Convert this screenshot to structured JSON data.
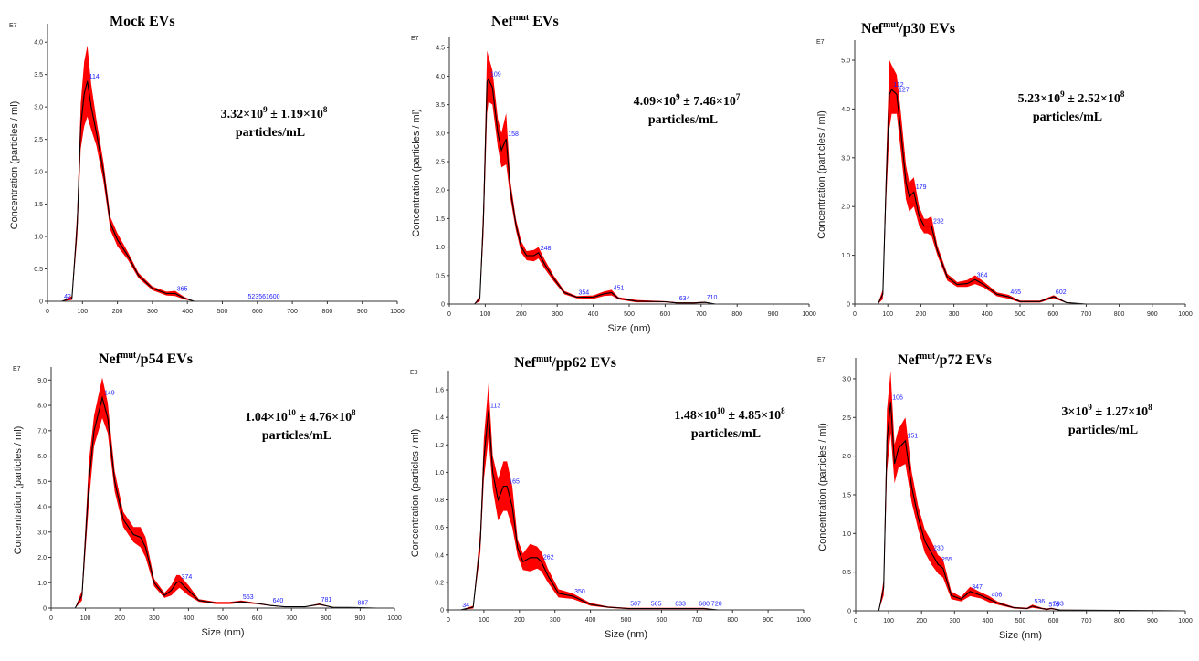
{
  "chart_data": [
    {
      "type": "line",
      "title": "Mock EVs",
      "title_main": "Mock EVs",
      "title_sup": "",
      "title_rest": "",
      "conc_line1": {
        "m": "3.32×10",
        "me": "9",
        "mid": " ± 1.19×10",
        "se": "8"
      },
      "conc_line2": "particles/mL",
      "ylabel": "Concentration (particles / ml)",
      "xlabel": "",
      "exponent": "E7",
      "xlim": [
        0,
        1000
      ],
      "ylim": [
        0,
        4.2
      ],
      "yticks": [
        "0",
        "0.5",
        "1.0",
        "1.5",
        "2.0",
        "2.5",
        "3.0",
        "3.5",
        "4.0"
      ],
      "xticks": [
        "0",
        "100",
        "200",
        "300",
        "400",
        "500",
        "600",
        "700",
        "800",
        "900",
        "1000"
      ],
      "x": [
        0,
        40,
        70,
        85,
        95,
        105,
        114,
        125,
        140,
        160,
        180,
        200,
        230,
        260,
        300,
        340,
        365,
        390,
        420,
        500,
        600,
        700,
        800,
        1000
      ],
      "y": [
        0,
        0,
        0.05,
        1.2,
        2.7,
        3.2,
        3.4,
        3.0,
        2.6,
        2.0,
        1.2,
        0.95,
        0.7,
        0.4,
        0.2,
        0.12,
        0.12,
        0.05,
        0,
        0,
        0,
        0,
        0,
        0
      ],
      "err": [
        0,
        0,
        0.03,
        0.2,
        0.35,
        0.5,
        0.55,
        0.35,
        0.2,
        0.15,
        0.1,
        0.1,
        0.06,
        0.04,
        0.03,
        0.03,
        0.04,
        0.02,
        0,
        0,
        0,
        0,
        0,
        0
      ],
      "peak_labels": [
        {
          "x": 42,
          "y": 0,
          "t": "42"
        },
        {
          "x": 114,
          "y": 3.4,
          "t": "114"
        },
        {
          "x": 365,
          "y": 0.12,
          "t": "365"
        },
        {
          "x": 568,
          "y": 0,
          "t": "523561600"
        }
      ]
    },
    {
      "type": "line",
      "title": "Nefmut EVs",
      "title_main": "Nef",
      "title_sup": "mut",
      "title_rest": " EVs",
      "conc_line1": {
        "m": "4.09×10",
        "me": "9",
        "mid": " ± 7.46×10",
        "se": "7"
      },
      "conc_line2": "particles/mL",
      "ylabel": "Concentration (particles / ml)",
      "xlabel": "Size (nm)",
      "exponent": "E7",
      "xlim": [
        0,
        1000
      ],
      "ylim": [
        0,
        4.6
      ],
      "yticks": [
        "0",
        "0.5",
        "1.0",
        "1.5",
        "2.0",
        "2.5",
        "3.0",
        "3.5",
        "4.0",
        "4.5"
      ],
      "xticks": [
        "0",
        "100",
        "200",
        "300",
        "400",
        "500",
        "600",
        "700",
        "800",
        "900",
        "1000"
      ],
      "x": [
        0,
        70,
        85,
        95,
        105,
        109,
        120,
        135,
        145,
        158,
        170,
        185,
        200,
        215,
        235,
        248,
        265,
        290,
        320,
        354,
        400,
        430,
        451,
        470,
        520,
        600,
        634,
        680,
        710,
        740,
        800,
        1000
      ],
      "y": [
        0,
        0,
        0.1,
        1.5,
        3.9,
        3.95,
        3.8,
        3.0,
        2.7,
        2.9,
        2.0,
        1.4,
        1.0,
        0.85,
        0.85,
        0.9,
        0.7,
        0.45,
        0.2,
        0.12,
        0.12,
        0.18,
        0.2,
        0.1,
        0.05,
        0.04,
        0.02,
        0.02,
        0.03,
        0,
        0,
        0
      ],
      "err": [
        0,
        0,
        0.05,
        0.3,
        0.55,
        0.4,
        0.3,
        0.25,
        0.3,
        0.45,
        0.15,
        0.1,
        0.1,
        0.08,
        0.1,
        0.1,
        0.08,
        0.05,
        0.03,
        0.02,
        0.03,
        0.04,
        0.05,
        0.02,
        0.02,
        0.01,
        0.01,
        0.01,
        0.01,
        0,
        0,
        0
      ],
      "peak_labels": [
        {
          "x": 109,
          "y": 3.95,
          "t": "109"
        },
        {
          "x": 158,
          "y": 2.9,
          "t": "158"
        },
        {
          "x": 248,
          "y": 0.9,
          "t": "248"
        },
        {
          "x": 354,
          "y": 0.12,
          "t": "354"
        },
        {
          "x": 451,
          "y": 0.2,
          "t": "451"
        },
        {
          "x": 634,
          "y": 0.02,
          "t": "634"
        },
        {
          "x": 710,
          "y": 0.03,
          "t": "710"
        }
      ]
    },
    {
      "type": "line",
      "title": "Nefmut/p30 EVs",
      "title_main": "Nef",
      "title_sup": "mut",
      "title_rest": "/p30 EVs",
      "conc_line1": {
        "m": "5.23×10",
        "me": "9",
        "mid": " ± 2.52×10",
        "se": "8"
      },
      "conc_line2": "particles/mL",
      "ylabel": "Concentration (particles / ml)",
      "xlabel": "",
      "exponent": "E7",
      "xlim": [
        0,
        1000
      ],
      "ylim": [
        0,
        5.3
      ],
      "yticks": [
        "0",
        "1.0",
        "2.0",
        "3.0",
        "4.0",
        "5.0"
      ],
      "xticks": [
        "0",
        "100",
        "200",
        "300",
        "400",
        "500",
        "600",
        "700",
        "800",
        "900",
        "1000"
      ],
      "x": [
        0,
        70,
        85,
        95,
        105,
        112,
        127,
        140,
        155,
        165,
        179,
        195,
        210,
        220,
        232,
        250,
        280,
        310,
        340,
        364,
        390,
        430,
        465,
        500,
        560,
        602,
        640,
        700,
        1000
      ],
      "y": [
        0,
        0,
        0.2,
        2.5,
        4.3,
        4.4,
        4.3,
        3.5,
        2.5,
        2.2,
        2.3,
        1.8,
        1.6,
        1.6,
        1.6,
        1.1,
        0.55,
        0.4,
        0.42,
        0.5,
        0.4,
        0.2,
        0.15,
        0.05,
        0.05,
        0.15,
        0.03,
        0,
        0
      ],
      "err": [
        0,
        0,
        0.1,
        0.4,
        0.7,
        0.5,
        0.4,
        0.4,
        0.35,
        0.3,
        0.3,
        0.2,
        0.15,
        0.15,
        0.2,
        0.1,
        0.07,
        0.05,
        0.07,
        0.09,
        0.06,
        0.04,
        0.04,
        0.02,
        0.02,
        0.03,
        0.01,
        0,
        0
      ],
      "peak_labels": [
        {
          "x": 112,
          "y": 4.4,
          "t": "112"
        },
        {
          "x": 127,
          "y": 4.3,
          "t": "127"
        },
        {
          "x": 179,
          "y": 2.3,
          "t": "179"
        },
        {
          "x": 232,
          "y": 1.6,
          "t": "232"
        },
        {
          "x": 364,
          "y": 0.5,
          "t": "364"
        },
        {
          "x": 465,
          "y": 0.15,
          "t": "465"
        },
        {
          "x": 602,
          "y": 0.15,
          "t": "602"
        }
      ]
    },
    {
      "type": "line",
      "title": "Nefmut/p54 EVs",
      "title_main": "Nef",
      "title_sup": "mut",
      "title_rest": "/p54 EVs",
      "conc_line1": {
        "m": "1.04×10",
        "me": "10",
        "mid": " ± 4.76×10",
        "se": "8"
      },
      "conc_line2": "particles/mL",
      "ylabel": "Concentration (particles / ml)",
      "xlabel": "Size (nm)",
      "exponent": "E7",
      "xlim": [
        0,
        1000
      ],
      "ylim": [
        0,
        9.3
      ],
      "yticks": [
        "0",
        "1.0",
        "2.0",
        "3.0",
        "4.0",
        "5.0",
        "6.0",
        "7.0",
        "8.0",
        "9.0"
      ],
      "xticks": [
        "0",
        "100",
        "200",
        "300",
        "400",
        "500",
        "600",
        "700",
        "800",
        "900",
        "1000"
      ],
      "x": [
        0,
        70,
        90,
        110,
        125,
        149,
        165,
        185,
        210,
        240,
        260,
        275,
        300,
        330,
        350,
        365,
        374,
        400,
        430,
        480,
        520,
        553,
        600,
        640,
        680,
        740,
        781,
        820,
        887,
        950,
        1000
      ],
      "y": [
        0,
        0,
        0.5,
        5.0,
        7.0,
        8.3,
        7.5,
        5.0,
        3.5,
        2.9,
        2.8,
        2.4,
        1.0,
        0.5,
        0.7,
        1.0,
        1.05,
        0.7,
        0.3,
        0.2,
        0.2,
        0.25,
        0.18,
        0.1,
        0.05,
        0.05,
        0.15,
        0.03,
        0.02,
        0,
        0
      ],
      "err": [
        0,
        0,
        0.2,
        0.8,
        0.6,
        0.8,
        0.6,
        0.4,
        0.3,
        0.3,
        0.4,
        0.4,
        0.15,
        0.1,
        0.2,
        0.3,
        0.25,
        0.2,
        0.05,
        0.04,
        0.04,
        0.05,
        0.03,
        0.02,
        0.01,
        0.01,
        0.03,
        0.01,
        0.01,
        0,
        0
      ],
      "peak_labels": [
        {
          "x": 149,
          "y": 8.3,
          "t": "149"
        },
        {
          "x": 374,
          "y": 1.05,
          "t": "374"
        },
        {
          "x": 553,
          "y": 0.25,
          "t": "553"
        },
        {
          "x": 640,
          "y": 0.1,
          "t": "640"
        },
        {
          "x": 781,
          "y": 0.15,
          "t": "781"
        },
        {
          "x": 887,
          "y": 0.02,
          "t": "887"
        }
      ]
    },
    {
      "type": "line",
      "title": "Nefmut/pp62 EVs",
      "title_main": "Nef",
      "title_sup": "mut",
      "title_rest": "/pp62 EVs",
      "conc_line1": {
        "m": "1.48×10",
        "me": "10",
        "mid": " ± 4.85×10",
        "se": "8"
      },
      "conc_line2": "particles/mL",
      "ylabel": "Concentration (particles / ml)",
      "xlabel": "Size (nm)",
      "exponent": "E8",
      "xlim": [
        0,
        1000
      ],
      "ylim": [
        0,
        1.7
      ],
      "yticks": [
        "0",
        "0.2",
        "0.4",
        "0.6",
        "0.8",
        "1.0",
        "1.2",
        "1.4",
        "1.6"
      ],
      "xticks": [
        "0",
        "100",
        "200",
        "300",
        "400",
        "500",
        "600",
        "700",
        "800",
        "900",
        "1000"
      ],
      "x": [
        0,
        34,
        70,
        90,
        100,
        113,
        125,
        140,
        155,
        165,
        180,
        195,
        210,
        230,
        250,
        262,
        280,
        310,
        350,
        400,
        450,
        507,
        565,
        600,
        633,
        680,
        720,
        760,
        1000
      ],
      "y": [
        0,
        0,
        0.02,
        0.5,
        1.1,
        1.45,
        1.0,
        0.8,
        0.9,
        0.9,
        0.75,
        0.45,
        0.35,
        0.38,
        0.38,
        0.35,
        0.25,
        0.12,
        0.1,
        0.04,
        0.02,
        0.01,
        0.01,
        0.01,
        0.01,
        0.01,
        0.01,
        0,
        0
      ],
      "err": [
        0,
        0,
        0.01,
        0.08,
        0.15,
        0.2,
        0.12,
        0.15,
        0.18,
        0.18,
        0.15,
        0.06,
        0.06,
        0.1,
        0.08,
        0.07,
        0.05,
        0.03,
        0.02,
        0.01,
        0.005,
        0.005,
        0.005,
        0.005,
        0.005,
        0.005,
        0.005,
        0,
        0
      ],
      "peak_labels": [
        {
          "x": 34,
          "y": 0,
          "t": "34"
        },
        {
          "x": 113,
          "y": 1.45,
          "t": "113"
        },
        {
          "x": 165,
          "y": 0.9,
          "t": "165"
        },
        {
          "x": 262,
          "y": 0.35,
          "t": "262"
        },
        {
          "x": 350,
          "y": 0.1,
          "t": "350"
        },
        {
          "x": 507,
          "y": 0.01,
          "t": "507"
        },
        {
          "x": 565,
          "y": 0.01,
          "t": "565"
        },
        {
          "x": 633,
          "y": 0.01,
          "t": "633"
        },
        {
          "x": 700,
          "y": 0.01,
          "t": "680 720"
        }
      ]
    },
    {
      "type": "line",
      "title": "Nefmut/p72 EVs",
      "title_main": "Nef",
      "title_sup": "mut",
      "title_rest": "/p72 EVs",
      "conc_line1": {
        "m": "3×10",
        "me": "9",
        "mid": " ± 1.27×10",
        "se": "8"
      },
      "conc_line2": "particles/mL",
      "ylabel": "Concentration (particles / ml)",
      "xlabel": "Size (nm)",
      "exponent": "E7",
      "xlim": [
        0,
        1000
      ],
      "ylim": [
        0,
        3.2
      ],
      "yticks": [
        "0",
        "0.5",
        "1.0",
        "1.5",
        "2.0",
        "2.5",
        "3.0"
      ],
      "xticks": [
        "0",
        "100",
        "200",
        "300",
        "400",
        "500",
        "600",
        "700",
        "800",
        "900",
        "1000"
      ],
      "x": [
        0,
        70,
        85,
        95,
        106,
        118,
        130,
        151,
        170,
        190,
        210,
        230,
        250,
        265,
        290,
        320,
        347,
        380,
        405,
        430,
        480,
        520,
        536,
        565,
        580,
        593,
        620,
        1000
      ],
      "y": [
        0,
        0,
        0.3,
        2.2,
        2.7,
        1.9,
        2.1,
        2.2,
        1.6,
        1.2,
        0.9,
        0.75,
        0.6,
        0.55,
        0.2,
        0.15,
        0.25,
        0.2,
        0.15,
        0.1,
        0.04,
        0.03,
        0.06,
        0.03,
        0.02,
        0.03,
        0.01,
        0
      ],
      "err": [
        0,
        0,
        0.1,
        0.4,
        0.4,
        0.25,
        0.25,
        0.3,
        0.2,
        0.15,
        0.15,
        0.15,
        0.12,
        0.12,
        0.05,
        0.03,
        0.06,
        0.04,
        0.04,
        0.02,
        0.01,
        0.01,
        0.02,
        0.01,
        0.01,
        0.01,
        0.005,
        0
      ],
      "peak_labels": [
        {
          "x": 106,
          "y": 2.7,
          "t": "106"
        },
        {
          "x": 151,
          "y": 2.2,
          "t": "151"
        },
        {
          "x": 230,
          "y": 0.75,
          "t": "230"
        },
        {
          "x": 255,
          "y": 0.6,
          "t": "255"
        },
        {
          "x": 347,
          "y": 0.25,
          "t": "347"
        },
        {
          "x": 406,
          "y": 0.15,
          "t": "406"
        },
        {
          "x": 536,
          "y": 0.06,
          "t": "536"
        },
        {
          "x": 580,
          "y": 0.02,
          "t": "575"
        },
        {
          "x": 593,
          "y": 0.03,
          "t": "593"
        }
      ]
    }
  ]
}
